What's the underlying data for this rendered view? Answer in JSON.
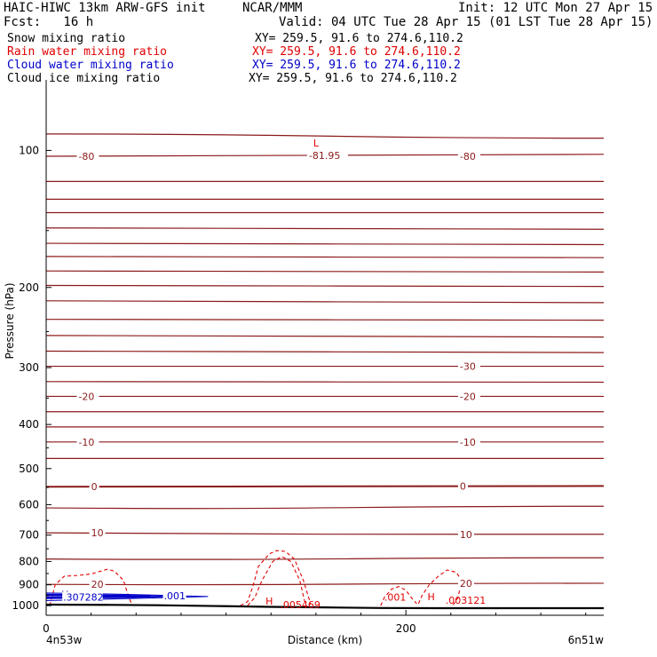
{
  "header": {
    "model": "HAIC-HIWC 13km ARW-GFS init",
    "org": "NCAR/MMM",
    "init": "Init: 12 UTC Mon 27 Apr 15",
    "fcst": "Fcst:   16 h",
    "valid": "Valid: 04 UTC Tue 28 Apr 15 (01 LST Tue 28 Apr 15)"
  },
  "fields": [
    {
      "name": "Snow mixing ratio",
      "xy": "XY= 259.5, 91.6 to 274.6,110.2",
      "color": "#000000"
    },
    {
      "name": "Rain water mixing ratio",
      "xy": "XY= 259.5, 91.6 to 274.6,110.2",
      "color": "#e00000"
    },
    {
      "name": "Cloud water mixing ratio",
      "xy": "XY= 259.5, 91.6 to 274.6,110.2",
      "color": "#0000c8"
    },
    {
      "name": "Cloud ice mixing ratio",
      "xy": "XY= 259.5, 91.6 to 274.6,110.2",
      "color": "#000000"
    }
  ],
  "chart_data": {
    "type": "cross-section contour",
    "xlabel": "Distance (km)",
    "ylabel": "Pressure (hPa)",
    "xlim": [
      0,
      310
    ],
    "ylim": [
      1050,
      70
    ],
    "y_scale": "log-pressure",
    "x_ticks": [
      0,
      200
    ],
    "y_ticks": [
      100,
      200,
      300,
      400,
      500,
      600,
      700,
      800,
      900,
      1000
    ],
    "endpoints": {
      "left": "4n53w",
      "right": "6n51w"
    },
    "temperature_contours": {
      "color": "#8b1a1a",
      "levels": [
        -80,
        -30,
        -20,
        -10,
        0,
        10,
        20
      ],
      "labels": [
        {
          "text": "-80",
          "x": 18,
          "p": 103
        },
        {
          "text": "-80",
          "x": 230,
          "p": 103
        },
        {
          "text": "-30",
          "x": 230,
          "p": 298
        },
        {
          "text": "-20",
          "x": 18,
          "p": 347
        },
        {
          "text": "-20",
          "x": 230,
          "p": 347
        },
        {
          "text": "-10",
          "x": 18,
          "p": 437
        },
        {
          "text": "-10",
          "x": 230,
          "p": 437
        },
        {
          "text": "0",
          "x": 25,
          "p": 548
        },
        {
          "text": "0",
          "x": 230,
          "p": 546
        },
        {
          "text": "10",
          "x": 25,
          "p": 692
        },
        {
          "text": "10",
          "x": 230,
          "p": 697
        },
        {
          "text": "20",
          "x": 25,
          "p": 898
        },
        {
          "text": "20",
          "x": 230,
          "p": 893
        }
      ],
      "min_label": {
        "text": "L",
        "value": "-81.95",
        "x": 150,
        "p": 98
      }
    },
    "rain_water": {
      "color": "#e00000",
      "labels": [
        {
          "text": ".001",
          "x": 188,
          "p": 958
        },
        {
          "text": ".005469",
          "x": 130,
          "p": 995
        },
        {
          "text": ".003121",
          "x": 222,
          "p": 972
        }
      ],
      "max_labels": [
        {
          "text": "H",
          "x": 122,
          "p": 978
        },
        {
          "text": "H",
          "x": 212,
          "p": 956
        }
      ]
    },
    "cloud_water": {
      "color": "#0000c8",
      "labels": [
        {
          "text": ".001",
          "x": 61,
          "p": 951
        },
        {
          "text": ".307282",
          "x": 5,
          "p": 958
        }
      ],
      "max_labels": [
        {
          "text": "H",
          "x": 5,
          "p": 945
        }
      ]
    },
    "terrain_p": [
      995,
      996,
      998,
      1002,
      1006,
      1009,
      1012,
      1013,
      1013,
      1013,
      1013
    ]
  }
}
